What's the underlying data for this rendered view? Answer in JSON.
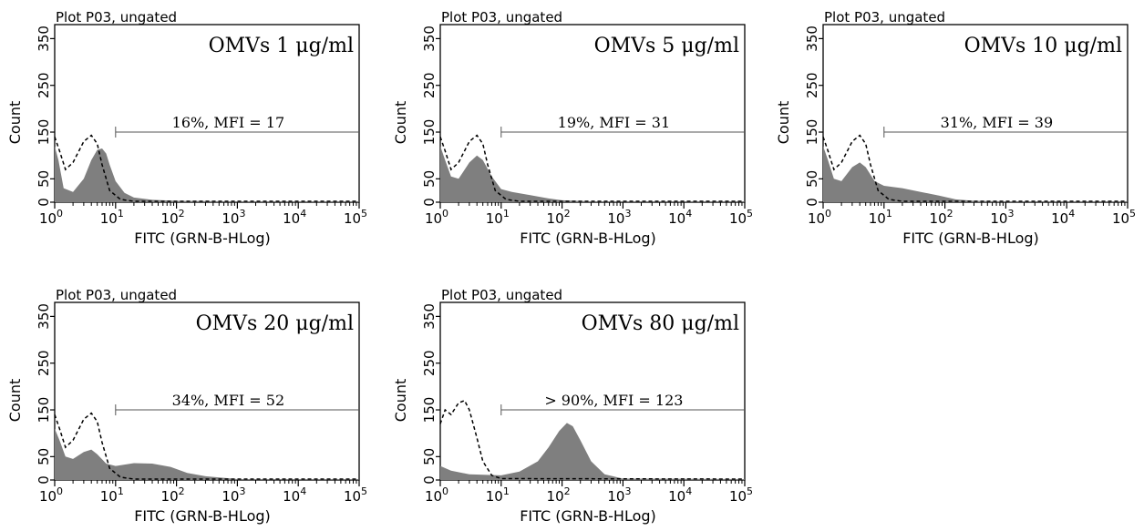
{
  "chart_data": [
    {
      "type": "area",
      "plot_label": "Plot P03, ungated",
      "title": "OMVs 1 μg/ml",
      "annotation": "16%, MFI = 17",
      "xlabel": "FITC (GRN-B-HLog)",
      "ylabel": "Count",
      "xscale": "log",
      "xlim": [
        1,
        100000
      ],
      "ylim": [
        0,
        380
      ],
      "x_ticks": [
        "10^0",
        "10^1",
        "10^2",
        "10^3",
        "10^4",
        "10^5"
      ],
      "y_ticks": [
        "0",
        "50",
        "150",
        "250",
        "350"
      ],
      "gate": {
        "x_start": 10,
        "x_end": 100000,
        "y": 150
      },
      "series": [
        {
          "style": "filled",
          "x": [
            1,
            1.15,
            1.4,
            2,
            3,
            4,
            5,
            6,
            7,
            8,
            10,
            14,
            20,
            40,
            100,
            1000,
            100000
          ],
          "y": [
            120,
            90,
            30,
            22,
            50,
            90,
            112,
            115,
            104,
            80,
            45,
            20,
            10,
            5,
            3,
            2,
            2
          ]
        },
        {
          "style": "dashed",
          "x": [
            1,
            1.2,
            1.5,
            2,
            3,
            4,
            5,
            6,
            8,
            12,
            20,
            100000
          ],
          "y": [
            140,
            110,
            70,
            85,
            130,
            143,
            125,
            80,
            25,
            6,
            2,
            2
          ]
        }
      ]
    },
    {
      "type": "area",
      "plot_label": "Plot P03, ungated",
      "title": "OMVs 5 μg/ml",
      "annotation": "19%, MFI = 31",
      "xlabel": "FITC (GRN-B-HLog)",
      "ylabel": "Count",
      "xscale": "log",
      "xlim": [
        1,
        100000
      ],
      "ylim": [
        0,
        380
      ],
      "x_ticks": [
        "10^0",
        "10^1",
        "10^2",
        "10^3",
        "10^4",
        "10^5"
      ],
      "y_ticks": [
        "0",
        "50",
        "150",
        "250",
        "350"
      ],
      "gate": {
        "x_start": 10,
        "x_end": 100000,
        "y": 150
      },
      "series": [
        {
          "style": "filled",
          "x": [
            1,
            1.2,
            1.5,
            2,
            3,
            4,
            5,
            7,
            10,
            15,
            30,
            60,
            100,
            300,
            100000
          ],
          "y": [
            120,
            90,
            55,
            50,
            85,
            100,
            90,
            55,
            28,
            22,
            15,
            8,
            4,
            2,
            2
          ]
        },
        {
          "style": "dashed",
          "x": [
            1,
            1.2,
            1.5,
            2,
            3,
            4,
            5,
            6,
            8,
            12,
            20,
            100000
          ],
          "y": [
            140,
            110,
            70,
            85,
            130,
            143,
            125,
            80,
            25,
            6,
            2,
            2
          ]
        }
      ]
    },
    {
      "type": "area",
      "plot_label": "Plot P03, ungated",
      "title": "OMVs 10 μg/ml",
      "annotation": "31%, MFI = 39",
      "xlabel": "FITC (GRN-B-HLog)",
      "ylabel": "Count",
      "xscale": "log",
      "xlim": [
        1,
        100000
      ],
      "ylim": [
        0,
        380
      ],
      "x_ticks": [
        "10^0",
        "10^1",
        "10^2",
        "10^3",
        "10^4",
        "10^5"
      ],
      "y_ticks": [
        "0",
        "50",
        "150",
        "250",
        "350"
      ],
      "gate": {
        "x_start": 10,
        "x_end": 100000,
        "y": 150
      },
      "series": [
        {
          "style": "filled",
          "x": [
            1,
            1.2,
            1.5,
            2,
            3,
            4,
            5,
            7,
            10,
            20,
            40,
            80,
            150,
            300,
            1000,
            100000
          ],
          "y": [
            120,
            90,
            50,
            45,
            75,
            85,
            75,
            45,
            35,
            30,
            22,
            14,
            6,
            3,
            2,
            2
          ]
        },
        {
          "style": "dashed",
          "x": [
            1,
            1.2,
            1.5,
            2,
            3,
            4,
            5,
            6,
            8,
            12,
            20,
            100000
          ],
          "y": [
            140,
            110,
            70,
            85,
            130,
            143,
            125,
            80,
            25,
            6,
            2,
            2
          ]
        }
      ]
    },
    {
      "type": "area",
      "plot_label": "Plot P03, ungated",
      "title": "OMVs 20 μg/ml",
      "annotation": "34%, MFI = 52",
      "xlabel": "FITC (GRN-B-HLog)",
      "ylabel": "Count",
      "xscale": "log",
      "xlim": [
        1,
        100000
      ],
      "ylim": [
        0,
        380
      ],
      "x_ticks": [
        "10^0",
        "10^1",
        "10^2",
        "10^3",
        "10^4",
        "10^5"
      ],
      "y_ticks": [
        "0",
        "50",
        "150",
        "250",
        "350"
      ],
      "gate": {
        "x_start": 10,
        "x_end": 100000,
        "y": 150
      },
      "series": [
        {
          "style": "filled",
          "x": [
            1,
            1.2,
            1.5,
            2,
            3,
            4,
            5,
            7,
            10,
            20,
            40,
            80,
            150,
            300,
            1000,
            100000
          ],
          "y": [
            110,
            85,
            50,
            45,
            60,
            65,
            55,
            35,
            30,
            36,
            35,
            28,
            15,
            8,
            2,
            2
          ]
        },
        {
          "style": "dashed",
          "x": [
            1,
            1.2,
            1.5,
            2,
            3,
            4,
            5,
            6,
            8,
            12,
            20,
            100000
          ],
          "y": [
            140,
            110,
            70,
            85,
            130,
            143,
            125,
            80,
            25,
            6,
            2,
            2
          ]
        }
      ]
    },
    {
      "type": "area",
      "plot_label": "Plot P03, ungated",
      "title": "OMVs 80 μg/ml",
      "annotation": "> 90%, MFI = 123",
      "xlabel": "FITC (GRN-B-HLog)",
      "ylabel": "Count",
      "xscale": "log",
      "xlim": [
        1,
        100000
      ],
      "ylim": [
        0,
        380
      ],
      "x_ticks": [
        "10^0",
        "10^1",
        "10^2",
        "10^3",
        "10^4",
        "10^5"
      ],
      "y_ticks": [
        "0",
        "50",
        "150",
        "250",
        "350"
      ],
      "gate": {
        "x_start": 10,
        "x_end": 100000,
        "y": 150
      },
      "series": [
        {
          "style": "filled",
          "x": [
            1,
            1.5,
            3,
            10,
            20,
            40,
            60,
            90,
            120,
            150,
            200,
            300,
            500,
            1000,
            100000
          ],
          "y": [
            30,
            20,
            12,
            10,
            18,
            40,
            70,
            105,
            122,
            115,
            85,
            40,
            12,
            3,
            2
          ]
        },
        {
          "style": "dashed",
          "x": [
            1,
            1.2,
            1.5,
            2,
            2.5,
            3,
            4,
            5,
            7,
            10,
            100000
          ],
          "y": [
            120,
            150,
            140,
            165,
            170,
            150,
            90,
            40,
            10,
            3,
            2
          ]
        }
      ]
    }
  ]
}
